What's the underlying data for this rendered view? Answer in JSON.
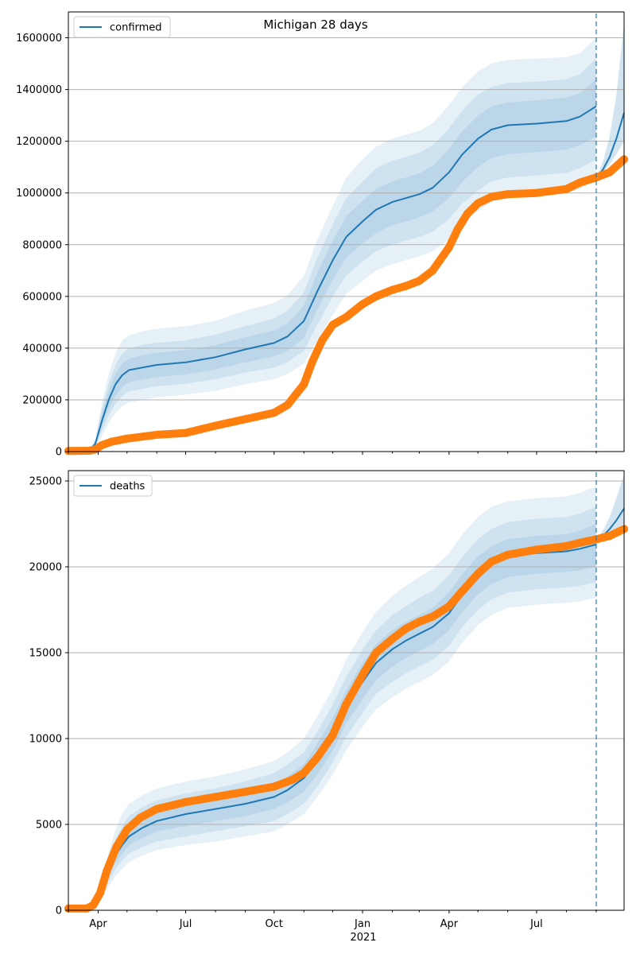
{
  "figure": {
    "title": "Michigan 28 days"
  },
  "colors": {
    "model": "#1f77b4",
    "observed": "#ff7f0e",
    "grid": "#b0b0b0",
    "axes": "#000000"
  },
  "x_axis": {
    "start": "2020-03-01",
    "end": "2021-09-30",
    "forecast_start": "2021-09-01",
    "major_ticks": [
      {
        "date": "2020-04-01",
        "label": "Apr"
      },
      {
        "date": "2020-07-01",
        "label": "Jul"
      },
      {
        "date": "2020-10-01",
        "label": "Oct"
      },
      {
        "date": "2021-01-01",
        "label": "Jan"
      },
      {
        "date": "2021-04-01",
        "label": "Apr"
      },
      {
        "date": "2021-07-01",
        "label": "Jul"
      }
    ],
    "minor_ticks": [
      "2020-03-01",
      "2020-05-01",
      "2020-06-01",
      "2020-08-01",
      "2020-09-01",
      "2020-11-01",
      "2020-12-01",
      "2021-02-01",
      "2021-03-01",
      "2021-05-01",
      "2021-06-01",
      "2021-08-01",
      "2021-09-01",
      "2021-10-01"
    ],
    "year_label": {
      "date": "2021-01-01",
      "text": "2021"
    }
  },
  "chart_data": [
    {
      "type": "line",
      "title": "Michigan 28 days",
      "legend": {
        "label": "confirmed",
        "position": "top-left"
      },
      "ylim": [
        0,
        1700000
      ],
      "yticks": [
        {
          "value": 0,
          "label": "0"
        },
        {
          "value": 200000,
          "label": "200000"
        },
        {
          "value": 400000,
          "label": "400000"
        },
        {
          "value": 600000,
          "label": "600000"
        },
        {
          "value": 800000,
          "label": "800000"
        },
        {
          "value": 1000000,
          "label": "1000000"
        },
        {
          "value": 1200000,
          "label": "1200000"
        },
        {
          "value": 1400000,
          "label": "1400000"
        },
        {
          "value": 1600000,
          "label": "1600000"
        }
      ],
      "grid": "horizontal",
      "model": {
        "x": [
          "2020-03-01",
          "2020-03-08",
          "2020-03-15",
          "2020-03-22",
          "2020-03-29",
          "2020-04-05",
          "2020-04-12",
          "2020-04-19",
          "2020-04-26",
          "2020-05-03",
          "2020-05-17",
          "2020-06-01",
          "2020-07-01",
          "2020-08-01",
          "2020-09-01",
          "2020-10-01",
          "2020-10-15",
          "2020-11-01",
          "2020-11-15",
          "2020-12-01",
          "2020-12-15",
          "2021-01-01",
          "2021-01-15",
          "2021-02-01",
          "2021-02-15",
          "2021-03-01",
          "2021-03-15",
          "2021-04-01",
          "2021-04-15",
          "2021-05-01",
          "2021-05-15",
          "2021-06-01",
          "2021-07-01",
          "2021-08-01",
          "2021-08-15",
          "2021-09-01"
        ],
        "y": [
          0,
          0,
          0,
          0,
          30000,
          120000,
          200000,
          260000,
          295000,
          315000,
          325000,
          335000,
          345000,
          365000,
          395000,
          420000,
          445000,
          505000,
          620000,
          740000,
          830000,
          890000,
          935000,
          965000,
          980000,
          995000,
          1020000,
          1080000,
          1150000,
          1210000,
          1245000,
          1262000,
          1268000,
          1278000,
          1295000,
          1335000
        ],
        "bands": [
          {
            "lower": [
              0,
              0,
              0,
              0,
              15000,
              60000,
              110000,
              150000,
              175000,
              190000,
              200000,
              210000,
              220000,
              235000,
              260000,
              280000,
              300000,
              340000,
              430000,
              530000,
              610000,
              660000,
              700000,
              725000,
              740000,
              755000,
              775000,
              820000,
              880000,
              930000,
              965000,
              980000,
              990000,
              1000000,
              1015000,
              1050000
            ],
            "upper": [
              0,
              0,
              0,
              0,
              50000,
              190000,
              300000,
              380000,
              430000,
              450000,
              465000,
              475000,
              485000,
              505000,
              545000,
              575000,
              605000,
              680000,
              820000,
              950000,
              1060000,
              1130000,
              1180000,
              1210000,
              1225000,
              1240000,
              1270000,
              1340000,
              1410000,
              1470000,
              1500000,
              1515000,
              1520000,
              1525000,
              1540000,
              1600000
            ]
          },
          {
            "lower": [
              0,
              0,
              0,
              0,
              20000,
              80000,
              140000,
              185000,
              215000,
              232000,
              242000,
              252000,
              262000,
              280000,
              305000,
              325000,
              345000,
              390000,
              490000,
              600000,
              680000,
              735000,
              775000,
              800000,
              815000,
              830000,
              850000,
              900000,
              960000,
              1010000,
              1045000,
              1060000,
              1068000,
              1078000,
              1095000,
              1130000
            ],
            "upper": [
              0,
              0,
              0,
              0,
              42000,
              165000,
              265000,
              335000,
              380000,
              400000,
              412000,
              420000,
              430000,
              452000,
              485000,
              515000,
              545000,
              615000,
              750000,
              880000,
              980000,
              1045000,
              1095000,
              1125000,
              1140000,
              1155000,
              1185000,
              1250000,
              1320000,
              1380000,
              1410000,
              1425000,
              1430000,
              1440000,
              1460000,
              1520000
            ]
          },
          {
            "lower": [
              0,
              0,
              0,
              0,
              24000,
              100000,
              165000,
              215000,
              250000,
              268000,
              278000,
              288000,
              298000,
              318000,
              345000,
              368000,
              390000,
              440000,
              550000,
              665000,
              750000,
              805000,
              845000,
              875000,
              890000,
              905000,
              928000,
              980000,
              1045000,
              1100000,
              1135000,
              1150000,
              1158000,
              1168000,
              1185000,
              1220000
            ],
            "upper": [
              0,
              0,
              0,
              0,
              36000,
              145000,
              235000,
              300000,
              340000,
              360000,
              372000,
              382000,
              392000,
              412000,
              442000,
              468000,
              495000,
              565000,
              690000,
              815000,
              910000,
              970000,
              1015000,
              1045000,
              1060000,
              1075000,
              1105000,
              1170000,
              1240000,
              1300000,
              1335000,
              1350000,
              1358000,
              1368000,
              1385000,
              1440000
            ]
          }
        ]
      },
      "forecast": {
        "x": [
          "2021-09-01",
          "2021-09-08",
          "2021-09-15",
          "2021-09-22",
          "2021-09-30"
        ],
        "y": [
          1060000,
          1090000,
          1140000,
          1210000,
          1310000
        ],
        "upper": [
          1060000,
          1120000,
          1220000,
          1380000,
          1660000
        ],
        "lower": [
          1060000,
          1080000,
          1110000,
          1150000,
          1200000
        ]
      },
      "observed": {
        "x": [
          "2020-03-01",
          "2020-03-22",
          "2020-03-29",
          "2020-04-05",
          "2020-04-15",
          "2020-05-01",
          "2020-06-01",
          "2020-07-01",
          "2020-08-01",
          "2020-09-01",
          "2020-10-01",
          "2020-10-15",
          "2020-11-01",
          "2020-11-10",
          "2020-11-20",
          "2020-12-01",
          "2020-12-15",
          "2021-01-01",
          "2021-01-15",
          "2021-02-01",
          "2021-02-15",
          "2021-03-01",
          "2021-03-15",
          "2021-04-01",
          "2021-04-10",
          "2021-04-20",
          "2021-05-01",
          "2021-05-15",
          "2021-06-01",
          "2021-07-01",
          "2021-08-01",
          "2021-08-15",
          "2021-09-01",
          "2021-09-15",
          "2021-09-30"
        ],
        "y": [
          2000,
          3000,
          8000,
          25000,
          38000,
          50000,
          65000,
          72000,
          100000,
          125000,
          150000,
          180000,
          260000,
          350000,
          430000,
          490000,
          520000,
          570000,
          600000,
          625000,
          640000,
          660000,
          700000,
          790000,
          860000,
          920000,
          960000,
          985000,
          995000,
          1000000,
          1015000,
          1040000,
          1060000,
          1080000,
          1130000
        ]
      }
    },
    {
      "type": "line",
      "title": "",
      "legend": {
        "label": "deaths",
        "position": "top-left"
      },
      "ylim": [
        0,
        25600
      ],
      "yticks": [
        {
          "value": 0,
          "label": "0"
        },
        {
          "value": 5000,
          "label": "5000"
        },
        {
          "value": 10000,
          "label": "10000"
        },
        {
          "value": 15000,
          "label": "15000"
        },
        {
          "value": 20000,
          "label": "20000"
        },
        {
          "value": 25000,
          "label": "25000"
        }
      ],
      "grid": "horizontal",
      "model": {
        "x": [
          "2020-03-01",
          "2020-03-15",
          "2020-03-22",
          "2020-03-29",
          "2020-04-05",
          "2020-04-12",
          "2020-04-19",
          "2020-04-26",
          "2020-05-03",
          "2020-05-17",
          "2020-06-01",
          "2020-07-01",
          "2020-08-01",
          "2020-09-01",
          "2020-10-01",
          "2020-10-15",
          "2020-11-01",
          "2020-11-15",
          "2020-12-01",
          "2020-12-15",
          "2021-01-01",
          "2021-01-15",
          "2021-02-01",
          "2021-02-15",
          "2021-03-01",
          "2021-03-15",
          "2021-04-01",
          "2021-04-15",
          "2021-05-01",
          "2021-05-15",
          "2021-06-01",
          "2021-07-01",
          "2021-08-01",
          "2021-08-15",
          "2021-09-01"
        ],
        "y": [
          0,
          0,
          50,
          300,
          1200,
          2300,
          3200,
          3800,
          4300,
          4800,
          5200,
          5600,
          5900,
          6200,
          6600,
          7000,
          7700,
          8800,
          10200,
          11800,
          13300,
          14400,
          15200,
          15700,
          16100,
          16500,
          17300,
          18400,
          19500,
          20200,
          20600,
          20800,
          20900,
          21050,
          21300
        ],
        "bands": [
          {
            "lower": [
              0,
              0,
              30,
              180,
              700,
              1400,
              2000,
              2400,
              2800,
              3200,
              3500,
              3800,
              4000,
              4300,
              4600,
              5000,
              5600,
              6600,
              7900,
              9300,
              10700,
              11700,
              12400,
              12900,
              13300,
              13700,
              14500,
              15600,
              16600,
              17200,
              17600,
              17800,
              17900,
              18000,
              18200
            ],
            "upper": [
              0,
              0,
              80,
              450,
              1800,
              3400,
              4700,
              5600,
              6200,
              6700,
              7100,
              7500,
              7800,
              8200,
              8700,
              9200,
              10000,
              11300,
              12900,
              14600,
              16200,
              17400,
              18300,
              18900,
              19400,
              19900,
              20800,
              21900,
              22900,
              23500,
              23800,
              24000,
              24100,
              24300,
              24700
            ]
          },
          {
            "lower": [
              0,
              0,
              35,
              220,
              850,
              1700,
              2400,
              2900,
              3300,
              3700,
              4000,
              4300,
              4600,
              4900,
              5200,
              5600,
              6200,
              7200,
              8600,
              10100,
              11500,
              12600,
              13300,
              13800,
              14200,
              14600,
              15400,
              16500,
              17500,
              18100,
              18500,
              18700,
              18800,
              18900,
              19100
            ],
            "upper": [
              0,
              0,
              70,
              400,
              1600,
              3000,
              4100,
              4900,
              5500,
              6000,
              6400,
              6800,
              7100,
              7500,
              8000,
              8500,
              9200,
              10400,
              12000,
              13600,
              15200,
              16300,
              17200,
              17700,
              18200,
              18600,
              19500,
              20600,
              21600,
              22200,
              22600,
              22800,
              22900,
              23100,
              23500
            ]
          },
          {
            "lower": [
              0,
              0,
              40,
              260,
              1000,
              2000,
              2800,
              3300,
              3800,
              4200,
              4600,
              4900,
              5200,
              5500,
              5900,
              6300,
              6900,
              7900,
              9300,
              10900,
              12300,
              13400,
              14200,
              14700,
              15100,
              15500,
              16300,
              17400,
              18400,
              19000,
              19400,
              19600,
              19700,
              19800,
              20000
            ],
            "upper": [
              0,
              0,
              60,
              350,
              1400,
              2700,
              3700,
              4400,
              4900,
              5400,
              5800,
              6200,
              6500,
              6900,
              7300,
              7800,
              8500,
              9700,
              11200,
              12800,
              14400,
              15500,
              16300,
              16800,
              17200,
              17600,
              18500,
              19600,
              20600,
              21200,
              21600,
              21800,
              21900,
              22100,
              22500
            ]
          }
        ]
      },
      "forecast": {
        "x": [
          "2021-09-01",
          "2021-09-08",
          "2021-09-15",
          "2021-09-22",
          "2021-09-30"
        ],
        "y": [
          21600,
          21800,
          22200,
          22700,
          23400
        ],
        "upper": [
          21600,
          22100,
          22900,
          24000,
          25400
        ],
        "lower": [
          21600,
          21700,
          21900,
          22200,
          22500
        ]
      },
      "observed": {
        "x": [
          "2020-03-01",
          "2020-03-20",
          "2020-03-27",
          "2020-04-03",
          "2020-04-10",
          "2020-04-20",
          "2020-05-01",
          "2020-05-15",
          "2020-06-01",
          "2020-07-01",
          "2020-08-01",
          "2020-09-01",
          "2020-10-01",
          "2020-10-20",
          "2020-11-01",
          "2020-11-15",
          "2020-12-01",
          "2020-12-15",
          "2021-01-01",
          "2021-01-15",
          "2021-02-01",
          "2021-02-15",
          "2021-03-01",
          "2021-03-15",
          "2021-04-01",
          "2021-04-15",
          "2021-05-01",
          "2021-05-15",
          "2021-06-01",
          "2021-07-01",
          "2021-08-01",
          "2021-08-15",
          "2021-09-01",
          "2021-09-15",
          "2021-09-30"
        ],
        "y": [
          100,
          100,
          300,
          1000,
          2300,
          3700,
          4700,
          5400,
          5900,
          6300,
          6600,
          6900,
          7200,
          7600,
          8000,
          8900,
          10200,
          12000,
          13700,
          15000,
          15800,
          16400,
          16800,
          17100,
          17700,
          18600,
          19600,
          20300,
          20700,
          21000,
          21200,
          21400,
          21600,
          21800,
          22200
        ]
      }
    }
  ]
}
